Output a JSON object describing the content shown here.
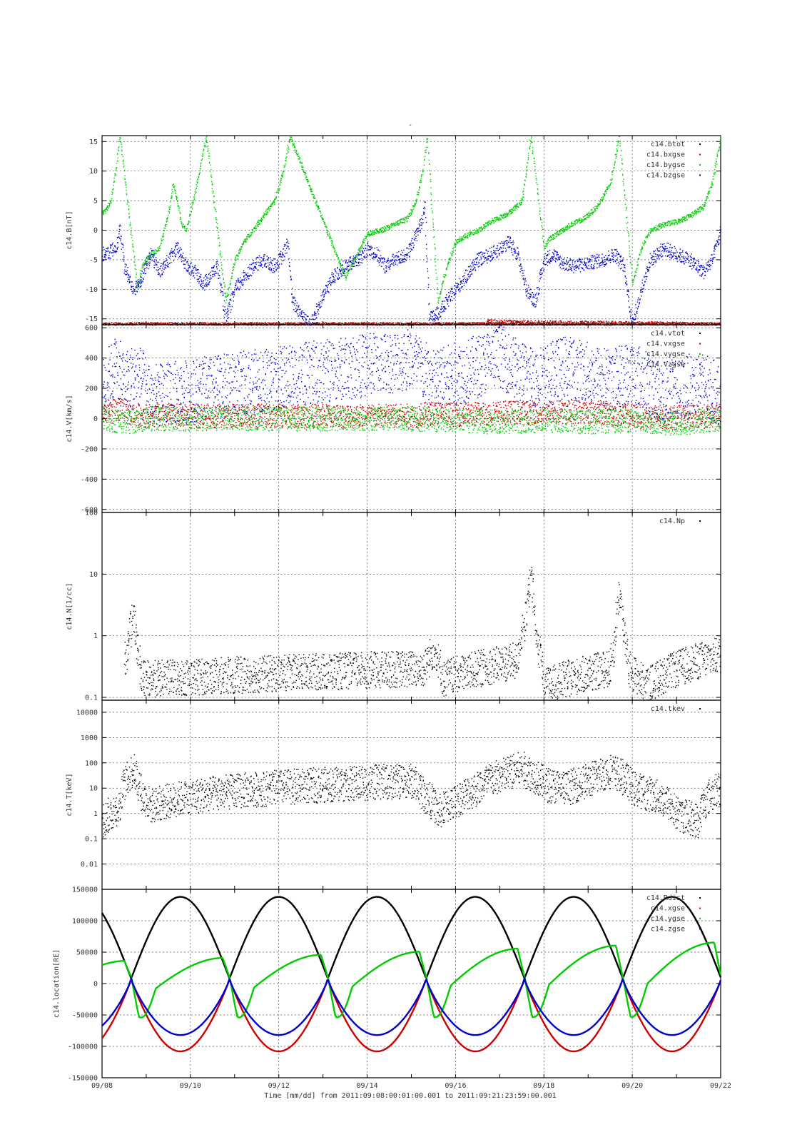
{
  "page_title": "-",
  "x_axis": {
    "tick_labels": [
      "09/08",
      "09/10",
      "09/12",
      "09/14",
      "09/16",
      "09/18",
      "09/20",
      "09/22"
    ],
    "caption": "Time [mm/dd]  from 2011:09:08:00:01:00.001  to  2011:09:21:23:59:00.001"
  },
  "colors": {
    "black": "#000000",
    "red": "#cc0000",
    "green": "#00cc00",
    "blue": "#0000cc"
  },
  "chart_data": [
    {
      "type": "scatter",
      "ylabel": "c14.B[nT]",
      "ylim": [
        -16,
        16
      ],
      "yticks": [
        -15,
        -10,
        -5,
        0,
        5,
        10,
        15
      ],
      "ytick_labels": [
        "-15",
        "-10",
        "-5",
        "0",
        "5",
        "10",
        "15"
      ],
      "grid": true,
      "legend": "top-right",
      "series": [
        {
          "name": "c14.btot",
          "color": "#000000",
          "points": [
            [
              0,
              -16
            ],
            [
              14,
              -16
            ]
          ]
        },
        {
          "name": "c14.bxgse",
          "color": "#cc0000",
          "points": [
            [
              0,
              -16
            ],
            [
              8.7,
              -16
            ],
            [
              8.7,
              -15.5
            ],
            [
              14,
              -16
            ]
          ]
        },
        {
          "name": "c14.bygse",
          "color": "#00cc00",
          "points": [
            [
              0.0,
              3
            ],
            [
              0.1,
              3.5
            ],
            [
              0.2,
              5
            ],
            [
              0.3,
              10
            ],
            [
              0.4,
              16
            ],
            [
              0.8,
              -10
            ],
            [
              0.9,
              -6
            ],
            [
              1.1,
              -4
            ],
            [
              1.3,
              -3
            ],
            [
              1.5,
              3
            ],
            [
              1.6,
              8
            ],
            [
              1.7,
              5
            ],
            [
              1.8,
              1
            ],
            [
              1.9,
              0
            ],
            [
              2.0,
              3
            ],
            [
              2.2,
              10
            ],
            [
              2.35,
              16
            ],
            [
              2.8,
              -12
            ],
            [
              3.0,
              -5
            ],
            [
              3.2,
              -2
            ],
            [
              3.4,
              0
            ],
            [
              3.6,
              2
            ],
            [
              3.9,
              5
            ],
            [
              4.1,
              10
            ],
            [
              4.25,
              16
            ],
            [
              5.5,
              -8
            ],
            [
              5.7,
              -5
            ],
            [
              5.9,
              -2
            ],
            [
              6.0,
              -0.5
            ],
            [
              6.3,
              0
            ],
            [
              6.6,
              1
            ],
            [
              6.9,
              2
            ],
            [
              7.1,
              5
            ],
            [
              7.25,
              10
            ],
            [
              7.35,
              16
            ],
            [
              7.6,
              -12
            ],
            [
              7.8,
              -6
            ],
            [
              8.0,
              -2
            ],
            [
              8.2,
              -1
            ],
            [
              8.5,
              0
            ],
            [
              8.8,
              1.5
            ],
            [
              9.2,
              3
            ],
            [
              9.5,
              5
            ],
            [
              9.7,
              16
            ],
            [
              10.0,
              -3
            ],
            [
              10.1,
              -1.5
            ],
            [
              10.4,
              0
            ],
            [
              10.6,
              1
            ],
            [
              10.9,
              2
            ],
            [
              11.2,
              4
            ],
            [
              11.5,
              8
            ],
            [
              11.7,
              16
            ],
            [
              12.0,
              -9
            ],
            [
              12.2,
              -3
            ],
            [
              12.4,
              0
            ],
            [
              12.7,
              1
            ],
            [
              13.0,
              1.5
            ],
            [
              13.3,
              2.5
            ],
            [
              13.6,
              4
            ],
            [
              13.8,
              8
            ],
            [
              14.0,
              16
            ]
          ]
        },
        {
          "name": "c14.bzgse",
          "color": "#0000cc",
          "points": [
            [
              0.0,
              -4
            ],
            [
              0.2,
              -3.5
            ],
            [
              0.35,
              -2
            ],
            [
              0.4,
              0
            ],
            [
              0.5,
              -6
            ],
            [
              0.7,
              -10
            ],
            [
              0.9,
              -8
            ],
            [
              1.1,
              -4
            ],
            [
              1.3,
              -7
            ],
            [
              1.5,
              -5
            ],
            [
              1.7,
              -3
            ],
            [
              1.9,
              -6
            ],
            [
              2.1,
              -7
            ],
            [
              2.3,
              -9
            ],
            [
              2.6,
              -6
            ],
            [
              2.8,
              -15
            ],
            [
              3.0,
              -10
            ],
            [
              3.3,
              -7
            ],
            [
              3.6,
              -5
            ],
            [
              3.9,
              -6
            ],
            [
              4.1,
              -4
            ],
            [
              4.2,
              -2
            ],
            [
              4.3,
              -12
            ],
            [
              4.7,
              -16
            ],
            [
              5.2,
              -8
            ],
            [
              5.5,
              -6
            ],
            [
              5.8,
              -5
            ],
            [
              6.0,
              -3
            ],
            [
              6.2,
              -4
            ],
            [
              6.4,
              -6
            ],
            [
              6.6,
              -5
            ],
            [
              6.9,
              -4
            ],
            [
              7.2,
              1
            ],
            [
              7.3,
              4
            ],
            [
              7.4,
              -15
            ],
            [
              7.6,
              -14
            ],
            [
              7.9,
              -11
            ],
            [
              8.2,
              -8
            ],
            [
              8.5,
              -5
            ],
            [
              8.8,
              -4
            ],
            [
              9.0,
              -3
            ],
            [
              9.2,
              -2
            ],
            [
              9.4,
              -4
            ],
            [
              9.6,
              -10
            ],
            [
              9.8,
              -12
            ],
            [
              10.0,
              -5
            ],
            [
              10.2,
              -4
            ],
            [
              10.4,
              -5.5
            ],
            [
              10.7,
              -6
            ],
            [
              11.0,
              -5.5
            ],
            [
              11.3,
              -5
            ],
            [
              11.6,
              -4
            ],
            [
              11.8,
              -6
            ],
            [
              12.0,
              -16
            ],
            [
              12.2,
              -10
            ],
            [
              12.4,
              -5
            ],
            [
              12.7,
              -3
            ],
            [
              13.0,
              -4
            ],
            [
              13.3,
              -5
            ],
            [
              13.6,
              -7
            ],
            [
              13.8,
              -5
            ],
            [
              14.0,
              0
            ]
          ]
        }
      ]
    },
    {
      "type": "scatter",
      "ylabel": "c14.V[km/s]",
      "ylim": [
        -620,
        620
      ],
      "yticks": [
        -600,
        -400,
        -200,
        0,
        200,
        400,
        600
      ],
      "ytick_labels": [
        "-600",
        "-400",
        "-200",
        "0",
        "200",
        "400",
        "600"
      ],
      "grid": true,
      "legend": "top-right",
      "series": [
        {
          "name": "c14.vtot",
          "color": "#000000",
          "points": []
        },
        {
          "name": "c14.vxgse",
          "color": "#cc0000",
          "points": [
            [
              0.0,
              40
            ],
            [
              0.4,
              60
            ],
            [
              0.7,
              30
            ],
            [
              1.1,
              20
            ],
            [
              7.0,
              20
            ],
            [
              7.5,
              40
            ],
            [
              8.0,
              30
            ],
            [
              9.0,
              40
            ],
            [
              10.0,
              45
            ],
            [
              11.0,
              50
            ],
            [
              12.0,
              20
            ],
            [
              13.0,
              10
            ],
            [
              14.0,
              20
            ]
          ]
        },
        {
          "name": "c14.vygse",
          "color": "#00cc00",
          "points": [
            [
              0.0,
              0
            ],
            [
              0.5,
              -20
            ],
            [
              1.1,
              0
            ],
            [
              7.0,
              0
            ],
            [
              8.0,
              -10
            ],
            [
              9.0,
              -20
            ],
            [
              10.0,
              -10
            ],
            [
              11.0,
              -20
            ],
            [
              12.0,
              -10
            ],
            [
              13.0,
              -30
            ],
            [
              14.0,
              0
            ]
          ]
        },
        {
          "name": "c14.vzgse",
          "color": "#0000cc",
          "points": [
            [
              0.0,
              200
            ],
            [
              0.3,
              350
            ],
            [
              0.5,
              250
            ],
            [
              0.8,
              300
            ],
            [
              1.1,
              150
            ],
            [
              7.0,
              400
            ],
            [
              7.5,
              250
            ],
            [
              8.0,
              300
            ],
            [
              8.5,
              350
            ],
            [
              9.0,
              420
            ],
            [
              9.5,
              300
            ],
            [
              10.0,
              280
            ],
            [
              10.5,
              350
            ],
            [
              11.0,
              300
            ],
            [
              11.5,
              260
            ],
            [
              12.0,
              320
            ],
            [
              12.5,
              200
            ],
            [
              13.0,
              180
            ],
            [
              13.5,
              250
            ],
            [
              14.0,
              150
            ]
          ]
        }
      ]
    },
    {
      "type": "scatter",
      "ylabel": "c14.N[1/cc]",
      "yscale": "log",
      "ylim": [
        0.09,
        100
      ],
      "yticks": [
        0.1,
        1,
        10,
        100
      ],
      "ytick_labels": [
        "0.1",
        "1",
        "10",
        "100"
      ],
      "grid": true,
      "legend": "top-right",
      "series": [
        {
          "name": "c14.Np",
          "color": "#000000",
          "points": [
            [
              0.5,
              0.3
            ],
            [
              0.6,
              0.8
            ],
            [
              0.7,
              2
            ],
            [
              0.8,
              0.5
            ],
            [
              0.9,
              0.2
            ],
            [
              7.3,
              0.3
            ],
            [
              7.5,
              0.6
            ],
            [
              7.7,
              0.2
            ],
            [
              9.4,
              0.4
            ],
            [
              9.6,
              2
            ],
            [
              9.7,
              8
            ],
            [
              9.8,
              1
            ],
            [
              10.0,
              0.15
            ],
            [
              11.5,
              0.3
            ],
            [
              11.6,
              0.8
            ],
            [
              11.7,
              5
            ],
            [
              11.8,
              1
            ],
            [
              11.9,
              0.3
            ],
            [
              12.3,
              0.15
            ],
            [
              14.0,
              0.5
            ]
          ]
        }
      ]
    },
    {
      "type": "scatter",
      "ylabel": "c14.T[keV]",
      "yscale": "log",
      "ylim": [
        0.001,
        30000
      ],
      "yticks": [
        0.01,
        0.1,
        1,
        10,
        100,
        1000,
        10000
      ],
      "ytick_labels": [
        "0.01",
        "0.1",
        "1",
        "10",
        "100",
        "1000",
        "10000"
      ],
      "grid": true,
      "legend": "top-right",
      "series": [
        {
          "name": "c14.tkev",
          "color": "#000000",
          "points": [
            [
              0.0,
              0.5
            ],
            [
              0.2,
              1
            ],
            [
              0.4,
              2
            ],
            [
              0.6,
              30
            ],
            [
              0.7,
              60
            ],
            [
              0.8,
              20
            ],
            [
              0.9,
              5
            ],
            [
              1.1,
              2
            ],
            [
              7.0,
              20
            ],
            [
              7.3,
              5
            ],
            [
              7.6,
              1
            ],
            [
              8.0,
              3
            ],
            [
              8.5,
              10
            ],
            [
              9.0,
              30
            ],
            [
              9.5,
              60
            ],
            [
              9.8,
              30
            ],
            [
              10.0,
              15
            ],
            [
              10.5,
              10
            ],
            [
              11.0,
              20
            ],
            [
              11.5,
              50
            ],
            [
              12.0,
              10
            ],
            [
              12.5,
              5
            ],
            [
              13.0,
              1
            ],
            [
              13.5,
              0.5
            ],
            [
              14.0,
              10
            ]
          ]
        }
      ]
    },
    {
      "type": "line",
      "ylabel": "c14.location[RE]",
      "ylim": [
        -150000,
        150000
      ],
      "yticks": [
        -150000,
        -100000,
        -50000,
        0,
        50000,
        100000,
        150000
      ],
      "ytick_labels": [
        "-150000",
        "-100000",
        "-50000",
        "0",
        "50000",
        "100000",
        "150000"
      ],
      "grid": true,
      "legend": "top-right",
      "series": [
        {
          "name": "c14.Rdist",
          "color": "#000000"
        },
        {
          "name": "c14.xgse",
          "color": "#cc0000"
        },
        {
          "name": "c14.ygse",
          "color": "#00cc00"
        },
        {
          "name": "c14.zgse",
          "color": "#0000cc"
        }
      ]
    }
  ]
}
